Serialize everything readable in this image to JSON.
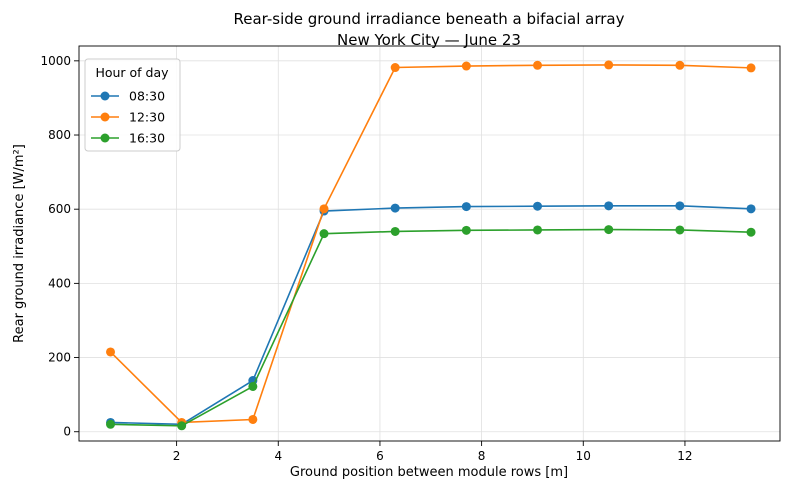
{
  "chart_data": {
    "type": "line",
    "title": "Rear-side ground irradiance beneath a bifacial array",
    "subtitle": "New York City — June 23",
    "xlabel": "Ground position between module rows [m]",
    "ylabel": "Rear ground irradiance [W/m²]",
    "xlim": [
      0.08,
      13.87
    ],
    "ylim": [
      -25,
      1040
    ],
    "xticks": [
      2,
      4,
      6,
      8,
      10,
      12
    ],
    "yticks": [
      0,
      200,
      400,
      600,
      800,
      1000
    ],
    "grid": true,
    "legend": {
      "title": "Hour of day",
      "placement": "top-left"
    },
    "x": [
      0.7,
      2.1,
      3.5,
      4.9,
      6.3,
      7.7,
      9.1,
      10.5,
      11.9,
      13.3
    ],
    "series": [
      {
        "name": "08:30",
        "color": "#1f77b4",
        "values": [
          25,
          20,
          138,
          595,
          603,
          607,
          608,
          609,
          609,
          601
        ]
      },
      {
        "name": "12:30",
        "color": "#ff7f0e",
        "values": [
          215,
          25,
          33,
          601,
          982,
          986,
          988,
          989,
          988,
          981
        ]
      },
      {
        "name": "16:30",
        "color": "#2ca02c",
        "values": [
          20,
          16,
          122,
          534,
          540,
          543,
          544,
          545,
          544,
          538
        ]
      }
    ]
  }
}
